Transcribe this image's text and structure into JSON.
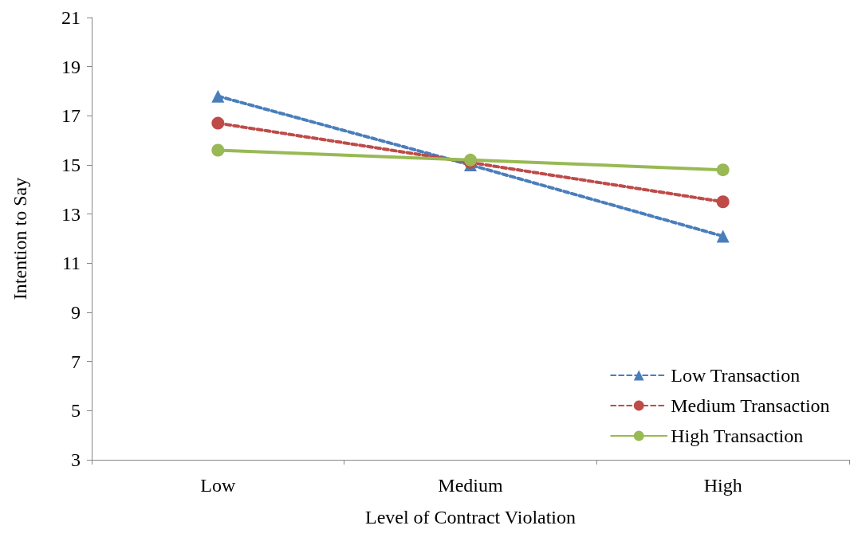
{
  "chart_data": {
    "type": "line",
    "xlabel": "Level of Contract Violation",
    "ylabel": "Intention to Say",
    "categories": [
      "Low",
      "Medium",
      "High"
    ],
    "series": [
      {
        "name": "Low Transaction",
        "color": "#4a7ebb",
        "values": [
          17.8,
          15.0,
          12.1
        ],
        "marker": "triangle",
        "line_style": "dashed"
      },
      {
        "name": "Medium Transaction",
        "color": "#be4b48",
        "values": [
          16.7,
          15.1,
          13.5
        ],
        "marker": "circle",
        "line_style": "dashed"
      },
      {
        "name": "High Transaction",
        "color": "#98b954",
        "values": [
          15.6,
          15.2,
          14.8
        ],
        "marker": "circle",
        "line_style": "solid"
      }
    ],
    "ylim": [
      3,
      21
    ],
    "yticks": [
      3,
      5,
      7,
      9,
      11,
      13,
      15,
      17,
      19,
      21
    ],
    "grid": false,
    "legend": "bottom right"
  }
}
